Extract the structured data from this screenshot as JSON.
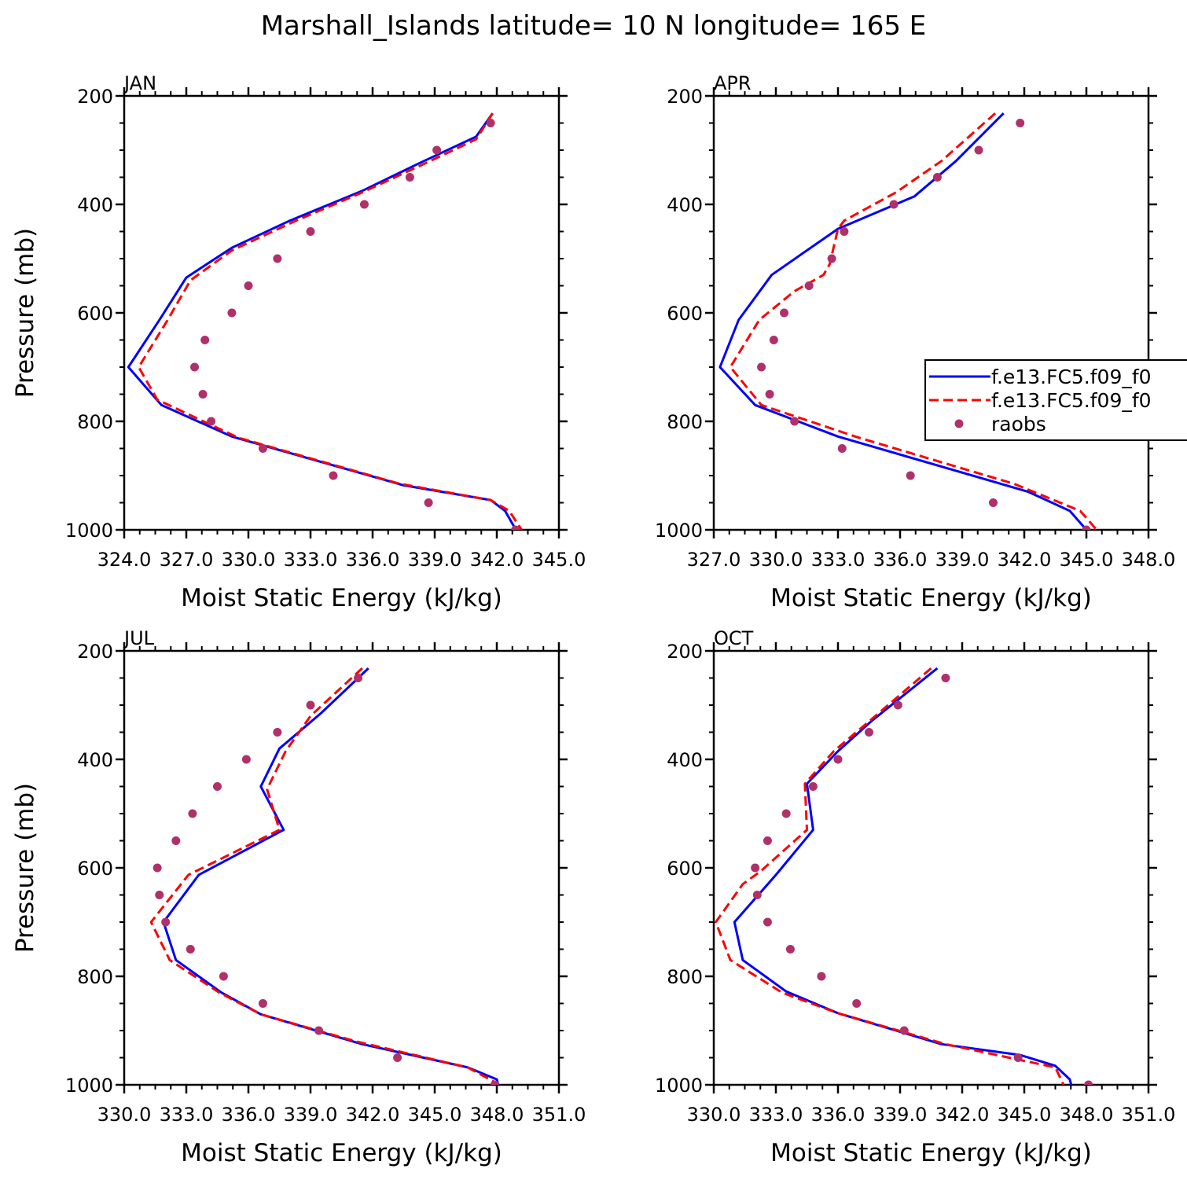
{
  "title": "Marshall_Islands  latitude= 10 N longitude= 165 E",
  "chart_data": [
    {
      "type": "line",
      "panel": "JAN",
      "xlabel": "Moist Static Energy (kJ/kg)",
      "ylabel": "Pressure (mb)",
      "xlim": [
        324.0,
        345.0
      ],
      "ylim": [
        200,
        1000
      ],
      "y_inverted": true,
      "xticks": [
        324.0,
        327.0,
        330.0,
        333.0,
        336.0,
        339.0,
        342.0,
        345.0
      ],
      "xtick_labels": [
        "324.0",
        "327.0",
        "330.0",
        "333.0",
        "336.0",
        "339.0",
        "342.0",
        "345.0"
      ],
      "yticks": [
        200,
        400,
        600,
        800,
        1000
      ],
      "ytick_labels": [
        "200",
        "400",
        "600",
        "800",
        "1000"
      ],
      "series": [
        {
          "name": "f.e13.FC5.f09_f0",
          "style": "solid",
          "color": "#0000ff",
          "points": [
            [
              341.8,
              232
            ],
            [
              341.0,
              275
            ],
            [
              338.2,
              325
            ],
            [
              335.5,
              375
            ],
            [
              332.0,
              430
            ],
            [
              329.2,
              480
            ],
            [
              327.0,
              535
            ],
            [
              325.7,
              613
            ],
            [
              324.2,
              700
            ],
            [
              325.8,
              770
            ],
            [
              329.2,
              828
            ],
            [
              337.5,
              918
            ],
            [
              341.7,
              945
            ],
            [
              342.4,
              965
            ],
            [
              343.0,
              1005
            ]
          ]
        },
        {
          "name": "f.e13.FC5.f09_f0",
          "style": "dashed",
          "color": "#ff0000",
          "points": [
            [
              341.8,
              232
            ],
            [
              341.0,
              280
            ],
            [
              338.5,
              325
            ],
            [
              335.5,
              378
            ],
            [
              332.3,
              430
            ],
            [
              329.2,
              485
            ],
            [
              327.2,
              540
            ],
            [
              326.1,
              613
            ],
            [
              324.7,
              700
            ],
            [
              325.6,
              760
            ],
            [
              329.5,
              830
            ],
            [
              337.3,
              915
            ],
            [
              341.7,
              945
            ],
            [
              342.6,
              965
            ],
            [
              343.2,
              1000
            ]
          ]
        },
        {
          "name": "raobs",
          "style": "markers",
          "color": "#b0306a",
          "points": [
            [
              341.7,
              250
            ],
            [
              339.1,
              300
            ],
            [
              337.8,
              350
            ],
            [
              335.6,
              400
            ],
            [
              333.0,
              450
            ],
            [
              331.4,
              500
            ],
            [
              330.0,
              550
            ],
            [
              329.2,
              600
            ],
            [
              327.9,
              650
            ],
            [
              327.4,
              700
            ],
            [
              327.8,
              750
            ],
            [
              328.2,
              800
            ],
            [
              330.7,
              850
            ],
            [
              334.1,
              900
            ],
            [
              338.7,
              950
            ],
            [
              342.9,
              1000
            ]
          ]
        }
      ]
    },
    {
      "type": "line",
      "panel": "APR",
      "xlabel": "Moist Static Energy (kJ/kg)",
      "ylabel": "",
      "xlim": [
        327.0,
        348.0
      ],
      "ylim": [
        200,
        1000
      ],
      "y_inverted": true,
      "xticks": [
        327.0,
        330.0,
        333.0,
        336.0,
        339.0,
        342.0,
        345.0,
        348.0
      ],
      "xtick_labels": [
        "327.0",
        "330.0",
        "333.0",
        "336.0",
        "339.0",
        "342.0",
        "345.0",
        "348.0"
      ],
      "yticks": [
        200,
        400,
        600,
        800,
        1000
      ],
      "ytick_labels": [
        "200",
        "400",
        "600",
        "800",
        "1000"
      ],
      "legend": {
        "position": "right",
        "entries": [
          "f.e13.FC5.f09_f0",
          "f.e13.FC5.f09_f0",
          "raobs"
        ]
      },
      "series": [
        {
          "name": "f.e13.FC5.f09_f0",
          "style": "solid",
          "color": "#0000ff",
          "points": [
            [
              341.0,
              232
            ],
            [
              338.7,
              320
            ],
            [
              336.7,
              385
            ],
            [
              333.0,
              445
            ],
            [
              329.8,
              530
            ],
            [
              328.2,
              613
            ],
            [
              327.3,
              700
            ],
            [
              329.0,
              770
            ],
            [
              333.0,
              828
            ],
            [
              342.2,
              930
            ],
            [
              344.2,
              965
            ],
            [
              345.0,
              1000
            ]
          ]
        },
        {
          "name": "f.e13.FC5.f09_f0",
          "style": "dashed",
          "color": "#ff0000",
          "points": [
            [
              340.6,
              232
            ],
            [
              338.0,
              320
            ],
            [
              335.8,
              378
            ],
            [
              333.3,
              430
            ],
            [
              333.0,
              445
            ],
            [
              332.6,
              510
            ],
            [
              332.3,
              530
            ],
            [
              330.9,
              560
            ],
            [
              329.2,
              613
            ],
            [
              327.8,
              700
            ],
            [
              329.3,
              770
            ],
            [
              334.0,
              830
            ],
            [
              341.5,
              915
            ],
            [
              344.7,
              965
            ],
            [
              345.5,
              1000
            ]
          ]
        },
        {
          "name": "raobs",
          "style": "markers",
          "color": "#b0306a",
          "points": [
            [
              341.8,
              250
            ],
            [
              339.8,
              300
            ],
            [
              337.8,
              350
            ],
            [
              335.7,
              400
            ],
            [
              333.3,
              450
            ],
            [
              332.7,
              500
            ],
            [
              331.6,
              550
            ],
            [
              330.4,
              600
            ],
            [
              329.9,
              650
            ],
            [
              329.3,
              700
            ],
            [
              329.7,
              750
            ],
            [
              330.9,
              800
            ],
            [
              333.2,
              850
            ],
            [
              336.5,
              900
            ],
            [
              340.5,
              950
            ],
            [
              345.0,
              1000
            ]
          ]
        }
      ]
    },
    {
      "type": "line",
      "panel": "JUL",
      "xlabel": "Moist Static Energy (kJ/kg)",
      "ylabel": "Pressure (mb)",
      "xlim": [
        330.0,
        351.0
      ],
      "ylim": [
        200,
        1000
      ],
      "y_inverted": true,
      "xticks": [
        330.0,
        333.0,
        336.0,
        339.0,
        342.0,
        345.0,
        348.0,
        351.0
      ],
      "xtick_labels": [
        "330.0",
        "333.0",
        "336.0",
        "339.0",
        "342.0",
        "345.0",
        "348.0",
        "351.0"
      ],
      "yticks": [
        200,
        400,
        600,
        800,
        1000
      ],
      "ytick_labels": [
        "200",
        "400",
        "600",
        "800",
        "1000"
      ],
      "series": [
        {
          "name": "f.e13.FC5.f09_f0",
          "style": "solid",
          "color": "#0000ff",
          "points": [
            [
              341.8,
              232
            ],
            [
              339.5,
              315
            ],
            [
              337.5,
              380
            ],
            [
              336.6,
              450
            ],
            [
              337.7,
              530
            ],
            [
              333.6,
              613
            ],
            [
              331.9,
              700
            ],
            [
              332.5,
              770
            ],
            [
              334.7,
              830
            ],
            [
              336.6,
              870
            ],
            [
              341.5,
              925
            ],
            [
              346.6,
              968
            ],
            [
              348.0,
              990
            ],
            [
              348.1,
              1005
            ]
          ]
        },
        {
          "name": "f.e13.FC5.f09_f0",
          "style": "dashed",
          "color": "#ff0000",
          "points": [
            [
              341.5,
              232
            ],
            [
              339.0,
              320
            ],
            [
              337.8,
              385
            ],
            [
              336.9,
              455
            ],
            [
              337.5,
              530
            ],
            [
              333.1,
              613
            ],
            [
              331.3,
              700
            ],
            [
              332.2,
              770
            ],
            [
              334.6,
              830
            ],
            [
              336.6,
              870
            ],
            [
              341.2,
              920
            ],
            [
              346.6,
              968
            ],
            [
              347.9,
              995
            ],
            [
              347.8,
              1000
            ]
          ]
        },
        {
          "name": "raobs",
          "style": "markers",
          "color": "#b0306a",
          "points": [
            [
              341.3,
              250
            ],
            [
              339.0,
              300
            ],
            [
              337.4,
              350
            ],
            [
              335.9,
              400
            ],
            [
              334.5,
              450
            ],
            [
              333.3,
              500
            ],
            [
              332.5,
              550
            ],
            [
              331.6,
              600
            ],
            [
              331.7,
              650
            ],
            [
              332.0,
              700
            ],
            [
              333.2,
              750
            ],
            [
              334.8,
              800
            ],
            [
              336.7,
              850
            ],
            [
              339.4,
              900
            ],
            [
              343.2,
              950
            ],
            [
              347.9,
              1000
            ]
          ]
        }
      ]
    },
    {
      "type": "line",
      "panel": "OCT",
      "xlabel": "Moist Static Energy (kJ/kg)",
      "ylabel": "",
      "xlim": [
        330.0,
        351.0
      ],
      "ylim": [
        200,
        1000
      ],
      "y_inverted": true,
      "xticks": [
        330.0,
        333.0,
        336.0,
        339.0,
        342.0,
        345.0,
        348.0,
        351.0
      ],
      "xtick_labels": [
        "330.0",
        "333.0",
        "336.0",
        "339.0",
        "342.0",
        "345.0",
        "348.0",
        "351.0"
      ],
      "yticks": [
        200,
        400,
        600,
        800,
        1000
      ],
      "ytick_labels": [
        "200",
        "400",
        "600",
        "800",
        "1000"
      ],
      "series": [
        {
          "name": "f.e13.FC5.f09_f0",
          "style": "solid",
          "color": "#0000ff",
          "points": [
            [
              340.8,
              232
            ],
            [
              337.6,
              330
            ],
            [
              336.0,
              385
            ],
            [
              334.5,
              445
            ],
            [
              334.8,
              530
            ],
            [
              333.0,
              613
            ],
            [
              331.0,
              700
            ],
            [
              331.4,
              770
            ],
            [
              333.5,
              828
            ],
            [
              336.0,
              868
            ],
            [
              341.0,
              925
            ],
            [
              344.8,
              945
            ],
            [
              346.5,
              965
            ],
            [
              347.2,
              990
            ],
            [
              347.3,
              1005
            ]
          ]
        },
        {
          "name": "f.e13.FC5.f09_f0",
          "style": "dashed",
          "color": "#ff0000",
          "points": [
            [
              340.5,
              232
            ],
            [
              337.5,
              330
            ],
            [
              335.8,
              385
            ],
            [
              334.4,
              445
            ],
            [
              334.5,
              530
            ],
            [
              332.3,
              605
            ],
            [
              331.4,
              630
            ],
            [
              330.1,
              700
            ],
            [
              330.8,
              770
            ],
            [
              333.3,
              830
            ],
            [
              336.0,
              868
            ],
            [
              341.2,
              925
            ],
            [
              346.5,
              968
            ],
            [
              346.9,
              1000
            ]
          ]
        },
        {
          "name": "raobs",
          "style": "markers",
          "color": "#b0306a",
          "points": [
            [
              341.2,
              250
            ],
            [
              338.9,
              300
            ],
            [
              337.5,
              350
            ],
            [
              336.0,
              400
            ],
            [
              334.8,
              450
            ],
            [
              333.5,
              500
            ],
            [
              332.6,
              550
            ],
            [
              332.0,
              600
            ],
            [
              332.1,
              650
            ],
            [
              332.6,
              700
            ],
            [
              333.7,
              750
            ],
            [
              335.2,
              800
            ],
            [
              336.9,
              850
            ],
            [
              339.2,
              900
            ],
            [
              344.7,
              950
            ],
            [
              348.1,
              1000
            ]
          ]
        }
      ]
    }
  ]
}
